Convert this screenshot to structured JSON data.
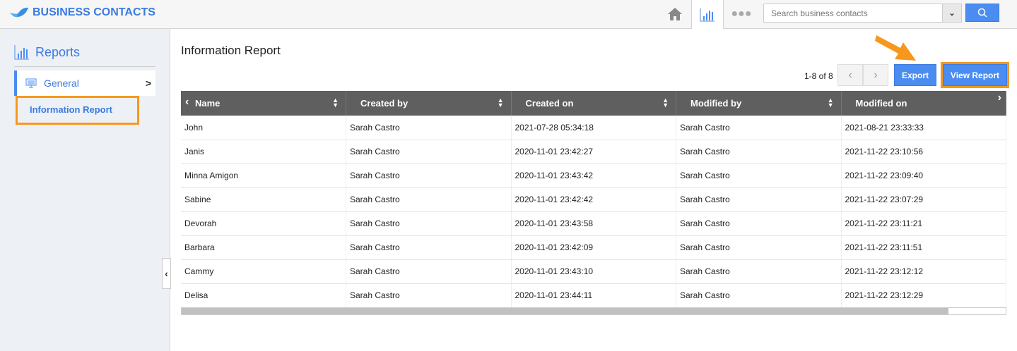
{
  "app": {
    "title": "BUSINESS CONTACTS"
  },
  "topbar": {
    "search_placeholder": "Search business contacts"
  },
  "sidebar": {
    "title": "Reports",
    "items": [
      {
        "label": "General"
      },
      {
        "label": "Information Report"
      }
    ]
  },
  "main": {
    "title": "Information Report",
    "pagination": "1-8 of 8",
    "export_label": "Export",
    "view_report_label": "View Report"
  },
  "table": {
    "columns": [
      "Name",
      "Created by",
      "Created on",
      "Modified by",
      "Modified on"
    ],
    "rows": [
      [
        "John",
        "Sarah Castro",
        "2021-07-28 05:34:18",
        "Sarah Castro",
        "2021-08-21 23:33:33"
      ],
      [
        "Janis",
        "Sarah Castro",
        "2020-11-01 23:42:27",
        "Sarah Castro",
        "2021-11-22 23:10:56"
      ],
      [
        "Minna Amigon",
        "Sarah Castro",
        "2020-11-01 23:43:42",
        "Sarah Castro",
        "2021-11-22 23:09:40"
      ],
      [
        "Sabine",
        "Sarah Castro",
        "2020-11-01 23:42:42",
        "Sarah Castro",
        "2021-11-22 23:07:29"
      ],
      [
        "Devorah",
        "Sarah Castro",
        "2020-11-01 23:43:58",
        "Sarah Castro",
        "2021-11-22 23:11:21"
      ],
      [
        "Barbara",
        "Sarah Castro",
        "2020-11-01 23:42:09",
        "Sarah Castro",
        "2021-11-22 23:11:51"
      ],
      [
        "Cammy",
        "Sarah Castro",
        "2020-11-01 23:43:10",
        "Sarah Castro",
        "2021-11-22 23:12:12"
      ],
      [
        "Delisa",
        "Sarah Castro",
        "2020-11-01 23:44:11",
        "Sarah Castro",
        "2021-11-22 23:12:29"
      ]
    ]
  },
  "colors": {
    "accent": "#4a8cf0",
    "highlight": "#f7981c",
    "header": "#5f5f5f"
  }
}
